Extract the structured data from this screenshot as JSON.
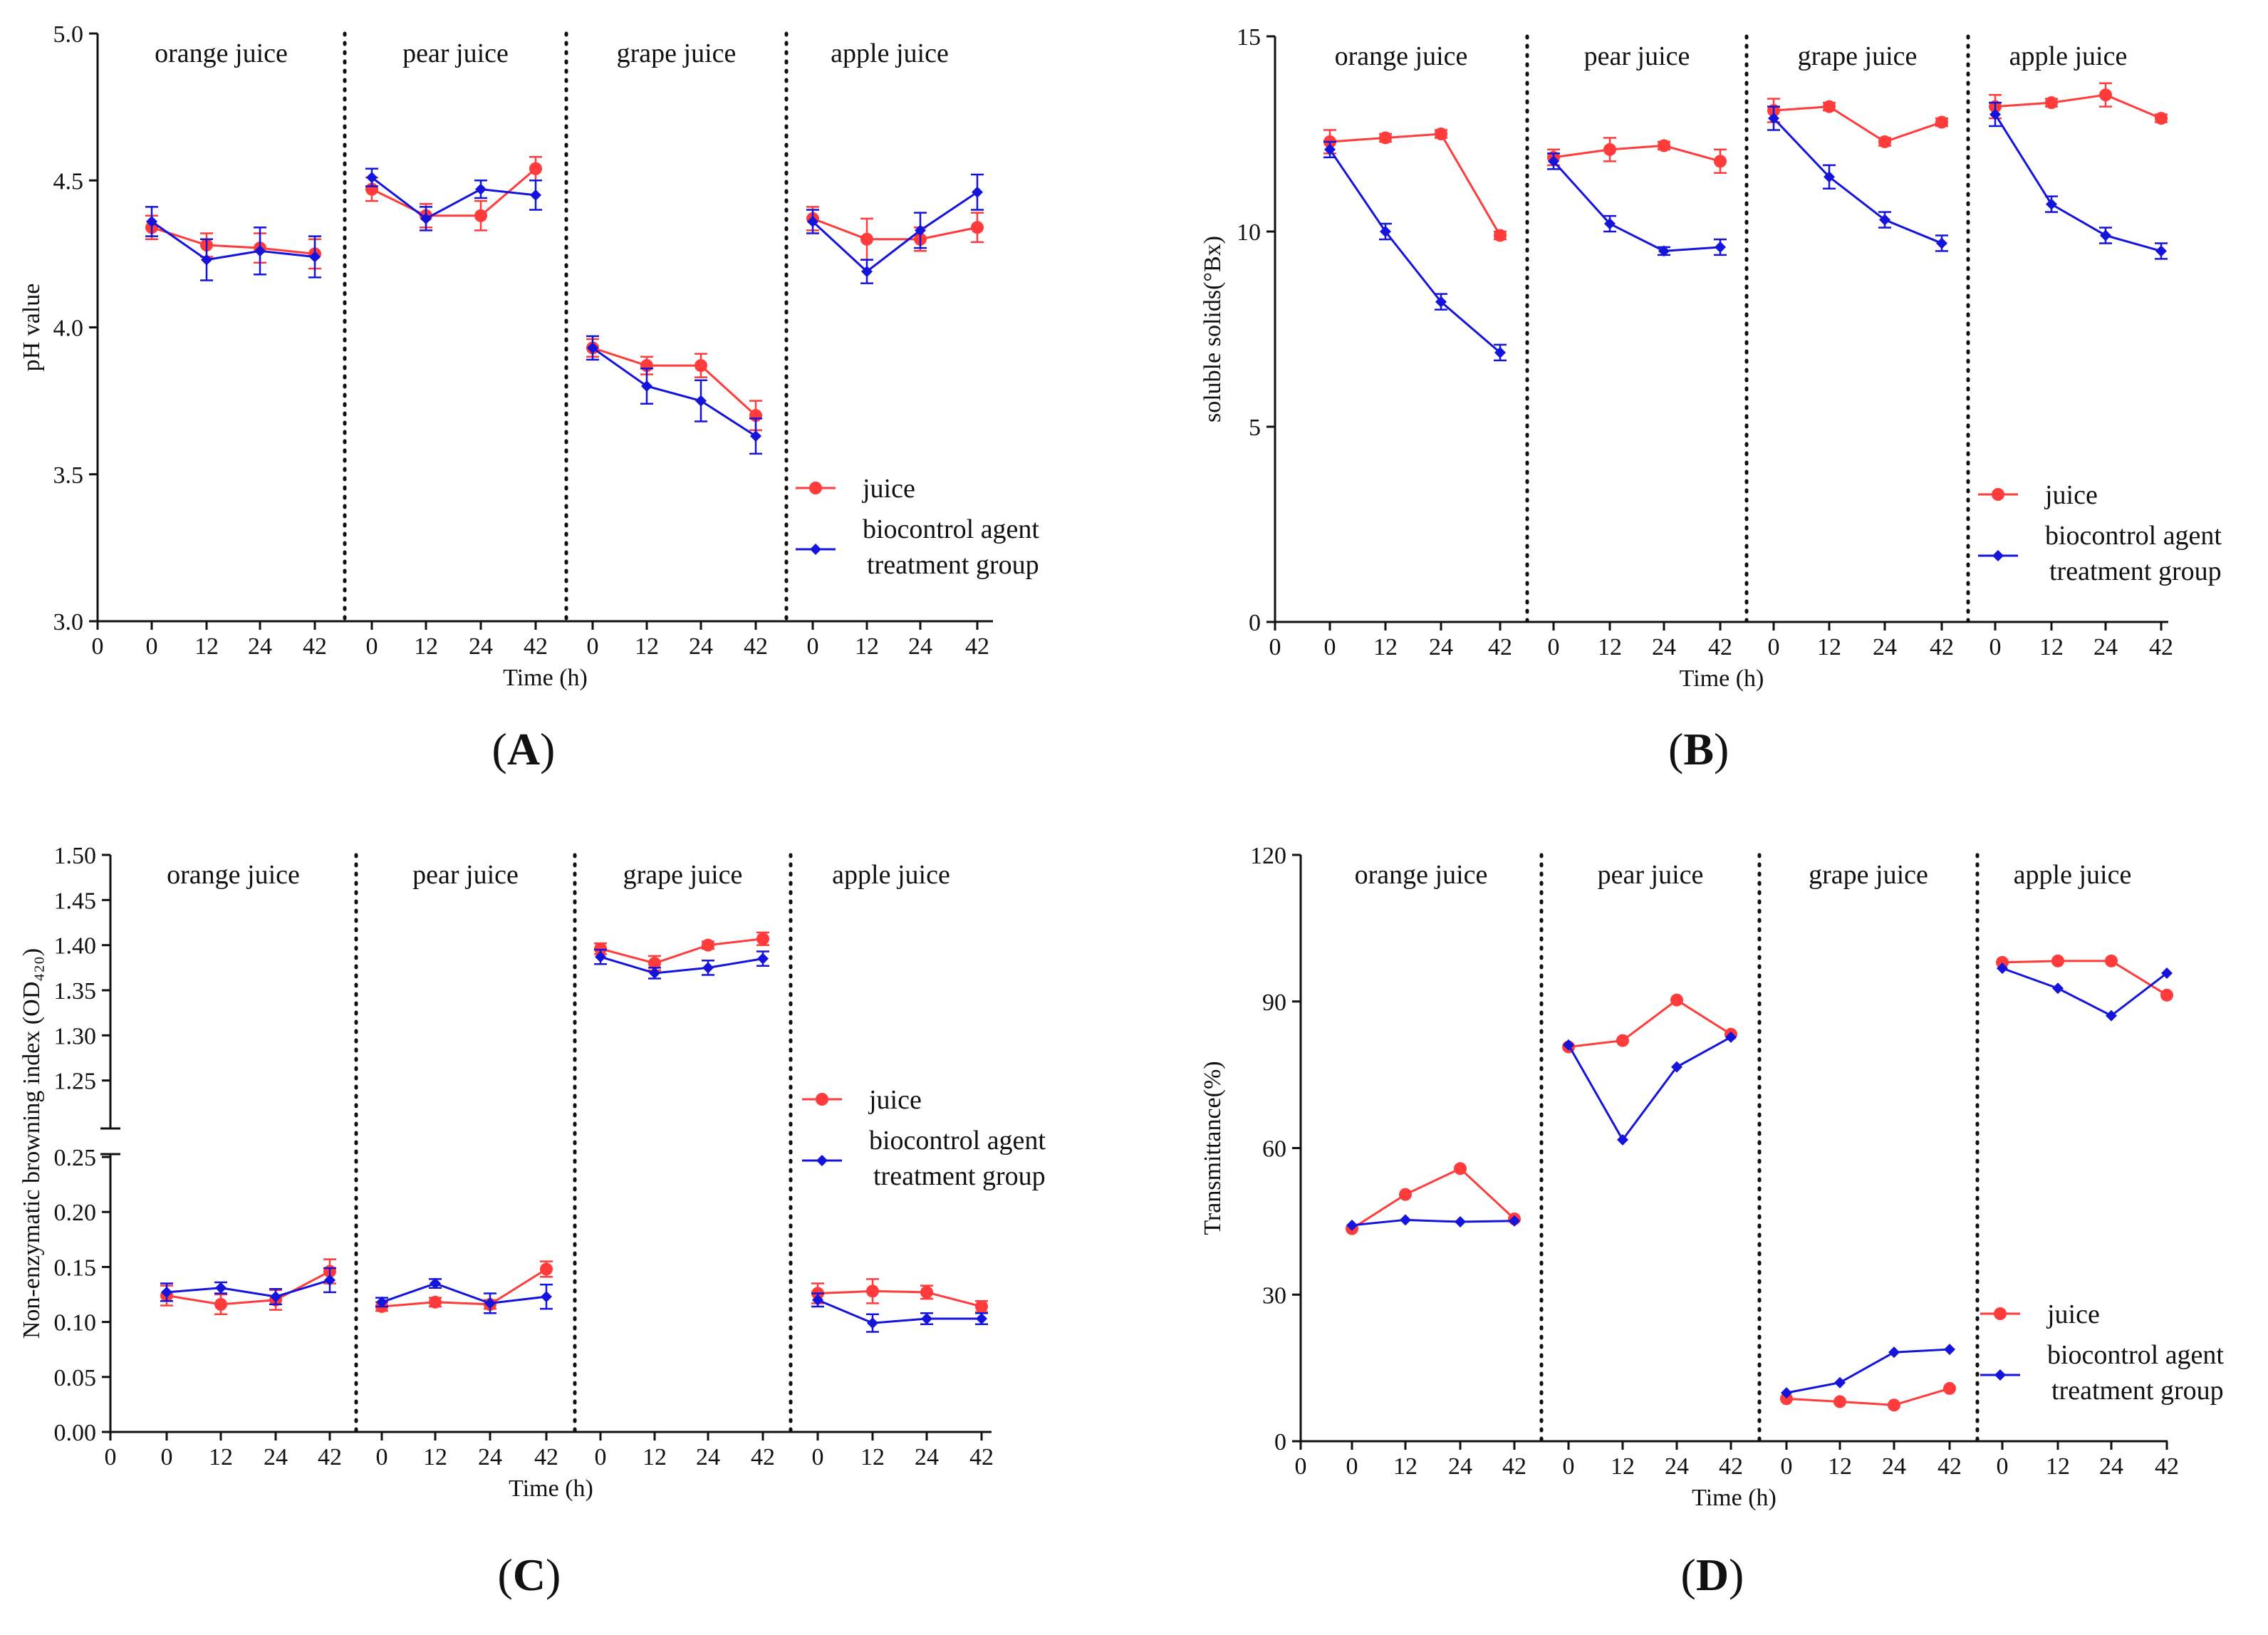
{
  "figure": {
    "panel_labels": [
      "A",
      "B",
      "C",
      "D"
    ],
    "colors": {
      "juice": "#ff3b3b",
      "treatment": "#1414dc"
    }
  },
  "chart_data": [
    {
      "type": "line",
      "label": "A",
      "title": "",
      "xlabel": "Time (h)",
      "ylabel": "pH value",
      "ylim": [
        3.0,
        5.0
      ],
      "yticks": [
        3.0,
        3.5,
        4.0,
        4.5,
        5.0
      ],
      "ytick_labels": [
        "3.0",
        "3.5",
        "4.0",
        "4.5",
        "5.0"
      ],
      "x_origin_label": "0",
      "segments": [
        "orange juice",
        "pear juice",
        "grape juice",
        "apple juice"
      ],
      "x": [
        "0",
        "12",
        "24",
        "42"
      ],
      "legend": {
        "placement": "right",
        "entries": [
          "juice",
          "biocontrol agent",
          "treatment group"
        ]
      },
      "series": [
        {
          "name": "juice",
          "color": "#ff3b3b",
          "marker": "circle",
          "values": [
            [
              4.34,
              4.28,
              4.27,
              4.25
            ],
            [
              4.47,
              4.38,
              4.38,
              4.54
            ],
            [
              3.93,
              3.87,
              3.87,
              3.7
            ],
            [
              4.37,
              4.3,
              4.3,
              4.34
            ]
          ],
          "errors": [
            [
              0.04,
              0.04,
              0.05,
              0.05
            ],
            [
              0.04,
              0.04,
              0.05,
              0.04
            ],
            [
              0.03,
              0.03,
              0.04,
              0.05
            ],
            [
              0.04,
              0.07,
              0.04,
              0.05
            ]
          ]
        },
        {
          "name": "biocontrol agent treatment group",
          "color": "#1414dc",
          "marker": "diamond",
          "values": [
            [
              4.36,
              4.23,
              4.26,
              4.24
            ],
            [
              4.51,
              4.37,
              4.47,
              4.45
            ],
            [
              3.93,
              3.8,
              3.75,
              3.63
            ],
            [
              4.36,
              4.19,
              4.33,
              4.46
            ]
          ],
          "errors": [
            [
              0.05,
              0.07,
              0.08,
              0.07
            ],
            [
              0.03,
              0.04,
              0.03,
              0.05
            ],
            [
              0.04,
              0.06,
              0.07,
              0.06
            ],
            [
              0.04,
              0.04,
              0.06,
              0.06
            ]
          ]
        }
      ]
    },
    {
      "type": "line",
      "label": "B",
      "title": "",
      "xlabel": "Time (h)",
      "ylabel": "soluble solids(°Bx)",
      "ylim": [
        0,
        15
      ],
      "yticks": [
        0,
        5,
        10,
        15
      ],
      "ytick_labels": [
        "0",
        "5",
        "10",
        "15"
      ],
      "x_origin_label": "0",
      "segments": [
        "orange juice",
        "pear juice",
        "grape juice",
        "apple juice"
      ],
      "x": [
        "0",
        "12",
        "24",
        "42"
      ],
      "legend": {
        "placement": "right",
        "entries": [
          "juice",
          "biocontrol agent",
          "treatment group"
        ]
      },
      "series": [
        {
          "name": "juice",
          "color": "#ff3b3b",
          "marker": "circle",
          "values": [
            [
              12.3,
              12.4,
              12.5,
              9.9
            ],
            [
              11.9,
              12.1,
              12.2,
              11.8
            ],
            [
              13.1,
              13.2,
              12.3,
              12.8
            ],
            [
              13.2,
              13.3,
              13.5,
              12.9
            ]
          ],
          "errors": [
            [
              0.3,
              0.1,
              0.1,
              0.1
            ],
            [
              0.2,
              0.3,
              0.1,
              0.3
            ],
            [
              0.3,
              0.1,
              0.1,
              0.1
            ],
            [
              0.3,
              0.1,
              0.3,
              0.1
            ]
          ]
        },
        {
          "name": "biocontrol agent treatment group",
          "color": "#1414dc",
          "marker": "diamond",
          "values": [
            [
              12.1,
              10.0,
              8.2,
              6.9
            ],
            [
              11.8,
              10.2,
              9.5,
              9.6
            ],
            [
              12.9,
              11.4,
              10.3,
              9.7
            ],
            [
              13.0,
              10.7,
              9.9,
              9.5
            ]
          ],
          "errors": [
            [
              0.2,
              0.2,
              0.2,
              0.2
            ],
            [
              0.2,
              0.2,
              0.1,
              0.2
            ],
            [
              0.3,
              0.3,
              0.2,
              0.2
            ],
            [
              0.3,
              0.2,
              0.2,
              0.2
            ]
          ]
        }
      ]
    },
    {
      "type": "line",
      "label": "C",
      "title": "",
      "xlabel": "Time (h)",
      "ylabel": "Non-enzymatic browning index (OD₄₂₀)",
      "axis_break": {
        "lower": [
          0.0,
          0.25
        ],
        "upper": [
          1.2,
          1.5
        ]
      },
      "yticks": [
        0.0,
        0.05,
        0.1,
        0.15,
        0.2,
        0.25,
        1.25,
        1.3,
        1.35,
        1.4,
        1.45,
        1.5
      ],
      "ytick_labels": [
        "0.00",
        "0.05",
        "0.10",
        "0.15",
        "0.20",
        "0.25",
        "1.25",
        "1.30",
        "1.35",
        "1.40",
        "1.45",
        "1.50"
      ],
      "x_origin_label": "0",
      "segments": [
        "orange juice",
        "pear juice",
        "grape juice",
        "apple juice"
      ],
      "x": [
        "0",
        "12",
        "24",
        "42"
      ],
      "legend": {
        "placement": "right",
        "entries": [
          "juice",
          "biocontrol agent",
          "treatment group"
        ]
      },
      "series": [
        {
          "name": "juice",
          "color": "#ff3b3b",
          "marker": "circle",
          "values": [
            [
              0.124,
              0.116,
              0.12,
              0.146
            ],
            [
              0.114,
              0.118,
              0.116,
              0.148
            ],
            [
              1.396,
              1.38,
              1.4,
              1.407
            ],
            [
              0.126,
              0.128,
              0.127,
              0.114
            ]
          ],
          "errors": [
            [
              0.009,
              0.009,
              0.009,
              0.011
            ],
            [
              0.004,
              0.004,
              0.004,
              0.007
            ],
            [
              0.006,
              0.008,
              0.004,
              0.007
            ],
            [
              0.009,
              0.011,
              0.006,
              0.005
            ]
          ]
        },
        {
          "name": "biocontrol agent treatment group",
          "color": "#1414dc",
          "marker": "diamond",
          "values": [
            [
              0.127,
              0.131,
              0.123,
              0.138
            ],
            [
              0.118,
              0.135,
              0.117,
              0.123
            ],
            [
              1.387,
              1.369,
              1.375,
              1.385
            ],
            [
              0.12,
              0.099,
              0.103,
              0.103
            ]
          ],
          "errors": [
            [
              0.008,
              0.005,
              0.007,
              0.011
            ],
            [
              0.004,
              0.004,
              0.009,
              0.011
            ],
            [
              0.008,
              0.006,
              0.008,
              0.008
            ],
            [
              0.006,
              0.008,
              0.005,
              0.005
            ]
          ]
        }
      ]
    },
    {
      "type": "line",
      "label": "D",
      "title": "",
      "xlabel": "Time (h)",
      "ylabel": "Transmittance(%)",
      "ylim": [
        0,
        120
      ],
      "yticks": [
        0,
        30,
        60,
        90,
        120
      ],
      "ytick_labels": [
        "0",
        "30",
        "60",
        "90",
        "120"
      ],
      "x_origin_label": "0",
      "segments": [
        "orange juice",
        "pear juice",
        "grape juice",
        "apple juice"
      ],
      "x": [
        "0",
        "12",
        "24",
        "42"
      ],
      "legend": {
        "placement": "right",
        "entries": [
          "juice",
          "biocontrol agent",
          "treatment group"
        ]
      },
      "series": [
        {
          "name": "juice",
          "color": "#ff3b3b",
          "marker": "circle",
          "values": [
            [
              43.5,
              50.5,
              55.8,
              45.5
            ],
            [
              80.7,
              82.0,
              90.3,
              83.3
            ],
            [
              8.7,
              8.1,
              7.4,
              10.8
            ],
            [
              98.0,
              98.3,
              98.3,
              91.3
            ]
          ]
        },
        {
          "name": "biocontrol agent treatment group",
          "color": "#1414dc",
          "marker": "diamond",
          "values": [
            [
              44.2,
              45.3,
              44.9,
              45.1
            ],
            [
              81.1,
              61.7,
              76.6,
              82.7
            ],
            [
              9.9,
              12.0,
              18.2,
              18.8
            ],
            [
              96.8,
              92.7,
              87.1,
              95.8
            ]
          ]
        }
      ]
    }
  ]
}
